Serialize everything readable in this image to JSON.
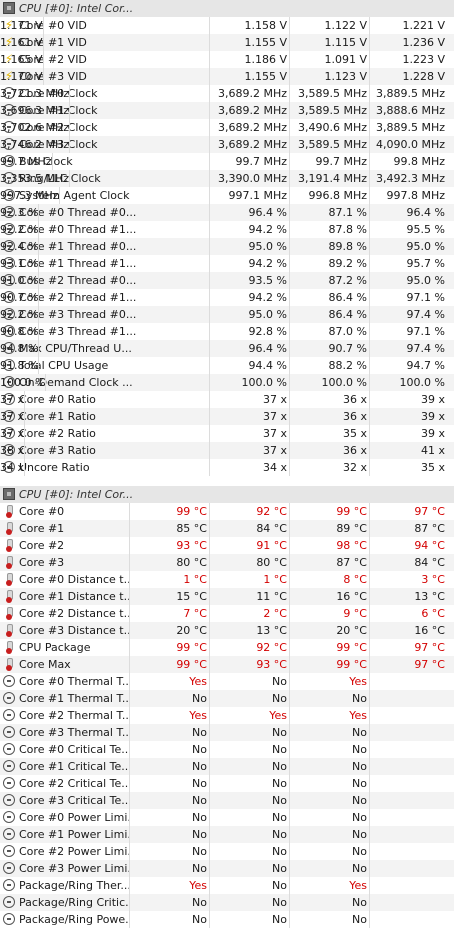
{
  "sections": [
    {
      "header": "CPU [#0]: Intel Cor...",
      "rows": [
        {
          "icon": "volt",
          "label": "Core #0 VID",
          "v": [
            "1.158 V",
            "1.122 V",
            "1.221 V",
            "1.171 V"
          ]
        },
        {
          "icon": "volt",
          "label": "Core #1 VID",
          "v": [
            "1.155 V",
            "1.115 V",
            "1.236 V",
            "1.161 V"
          ]
        },
        {
          "icon": "volt",
          "label": "Core #2 VID",
          "v": [
            "1.186 V",
            "1.091 V",
            "1.223 V",
            "1.165 V"
          ]
        },
        {
          "icon": "volt",
          "label": "Core #3 VID",
          "v": [
            "1.155 V",
            "1.123 V",
            "1.228 V",
            "1.170 V"
          ]
        },
        {
          "icon": "clock",
          "label": "Core #0 Clock",
          "v": [
            "3,689.2 MHz",
            "3,589.5 MHz",
            "3,889.5 MHz",
            "3,721.3 MHz"
          ]
        },
        {
          "icon": "clock",
          "label": "Core #1 Clock",
          "v": [
            "3,689.2 MHz",
            "3,589.5 MHz",
            "3,888.6 MHz",
            "3,696.3 MHz"
          ]
        },
        {
          "icon": "clock",
          "label": "Core #2 Clock",
          "v": [
            "3,689.2 MHz",
            "3,490.6 MHz",
            "3,889.5 MHz",
            "3,702.6 MHz"
          ]
        },
        {
          "icon": "clock",
          "label": "Core #3 Clock",
          "v": [
            "3,689.2 MHz",
            "3,589.5 MHz",
            "4,090.0 MHz",
            "3,746.2 MHz"
          ]
        },
        {
          "icon": "clock",
          "label": "Bus Clock",
          "v": [
            "99.7 MHz",
            "99.7 MHz",
            "99.8 MHz",
            "99.7 MHz"
          ]
        },
        {
          "icon": "clock",
          "label": "Ring/LLC Clock",
          "v": [
            "3,390.0 MHz",
            "3,191.4 MHz",
            "3,492.3 MHz",
            "3,353.5 MHz"
          ]
        },
        {
          "icon": "clock",
          "label": "System Agent Clock",
          "v": [
            "997.1 MHz",
            "996.8 MHz",
            "997.8 MHz",
            "997.3 MHz"
          ]
        },
        {
          "icon": "clock",
          "label": "Core #0 Thread #0...",
          "v": [
            "96.4 %",
            "87.1 %",
            "96.4 %",
            "92.3 %"
          ]
        },
        {
          "icon": "clock",
          "label": "Core #0 Thread #1...",
          "v": [
            "94.2 %",
            "87.8 %",
            "95.5 %",
            "92.2 %"
          ]
        },
        {
          "icon": "clock",
          "label": "Core #1 Thread #0...",
          "v": [
            "95.0 %",
            "89.8 %",
            "95.0 %",
            "92.4 %"
          ]
        },
        {
          "icon": "clock",
          "label": "Core #1 Thread #1...",
          "v": [
            "94.2 %",
            "89.2 %",
            "95.7 %",
            "93.1 %"
          ]
        },
        {
          "icon": "clock",
          "label": "Core #2 Thread #0...",
          "v": [
            "93.5 %",
            "87.2 %",
            "95.0 %",
            "91.0 %"
          ]
        },
        {
          "icon": "clock",
          "label": "Core #2 Thread #1...",
          "v": [
            "94.2 %",
            "86.4 %",
            "97.1 %",
            "90.7 %"
          ]
        },
        {
          "icon": "clock",
          "label": "Core #3 Thread #0...",
          "v": [
            "95.0 %",
            "86.4 %",
            "97.4 %",
            "92.2 %"
          ]
        },
        {
          "icon": "clock",
          "label": "Core #3 Thread #1...",
          "v": [
            "92.8 %",
            "87.0 %",
            "97.1 %",
            "90.8 %"
          ]
        },
        {
          "icon": "clock",
          "label": "Max CPU/Thread U...",
          "v": [
            "96.4 %",
            "90.7 %",
            "97.4 %",
            "94.8 %"
          ]
        },
        {
          "icon": "clock",
          "label": "Total CPU Usage",
          "v": [
            "94.4 %",
            "88.2 %",
            "94.7 %",
            "91.8 %"
          ]
        },
        {
          "icon": "clock",
          "label": "On-Demand Clock ...",
          "v": [
            "100.0 %",
            "100.0 %",
            "100.0 %",
            "100.0 %"
          ]
        },
        {
          "icon": "clock",
          "label": "Core #0 Ratio",
          "v": [
            "37 x",
            "36 x",
            "39 x",
            "37 x"
          ]
        },
        {
          "icon": "clock",
          "label": "Core #1 Ratio",
          "v": [
            "37 x",
            "36 x",
            "39 x",
            "37 x"
          ]
        },
        {
          "icon": "clock",
          "label": "Core #2 Ratio",
          "v": [
            "37 x",
            "35 x",
            "39 x",
            "37 x"
          ]
        },
        {
          "icon": "clock",
          "label": "Core #3 Ratio",
          "v": [
            "37 x",
            "36 x",
            "41 x",
            "38 x"
          ]
        },
        {
          "icon": "clock",
          "label": "Uncore Ratio",
          "v": [
            "34 x",
            "32 x",
            "35 x",
            "34 x"
          ]
        }
      ]
    },
    {
      "header": "CPU [#0]: Intel Cor...",
      "rows": [
        {
          "icon": "therm",
          "label": "Core #0",
          "v": [
            "99 °C",
            "92 °C",
            "99 °C",
            "97 °C"
          ],
          "red": [
            true,
            true,
            true,
            true
          ]
        },
        {
          "icon": "therm",
          "label": "Core #1",
          "v": [
            "85 °C",
            "84 °C",
            "89 °C",
            "87 °C"
          ],
          "red": [
            false,
            false,
            false,
            false
          ]
        },
        {
          "icon": "therm",
          "label": "Core #2",
          "v": [
            "93 °C",
            "91 °C",
            "98 °C",
            "94 °C"
          ],
          "red": [
            true,
            true,
            true,
            true
          ]
        },
        {
          "icon": "therm",
          "label": "Core #3",
          "v": [
            "80 °C",
            "80 °C",
            "87 °C",
            "84 °C"
          ],
          "red": [
            false,
            false,
            false,
            false
          ]
        },
        {
          "icon": "therm",
          "label": "Core #0 Distance t...",
          "v": [
            "1 °C",
            "1 °C",
            "8 °C",
            "3 °C"
          ],
          "red": [
            true,
            true,
            true,
            true
          ]
        },
        {
          "icon": "therm",
          "label": "Core #1 Distance t...",
          "v": [
            "15 °C",
            "11 °C",
            "16 °C",
            "13 °C"
          ],
          "red": [
            false,
            false,
            false,
            false
          ]
        },
        {
          "icon": "therm",
          "label": "Core #2 Distance t...",
          "v": [
            "7 °C",
            "2 °C",
            "9 °C",
            "6 °C"
          ],
          "red": [
            true,
            true,
            true,
            true
          ]
        },
        {
          "icon": "therm",
          "label": "Core #3 Distance t...",
          "v": [
            "20 °C",
            "13 °C",
            "20 °C",
            "16 °C"
          ],
          "red": [
            false,
            false,
            false,
            false
          ]
        },
        {
          "icon": "therm",
          "label": "CPU Package",
          "v": [
            "99 °C",
            "92 °C",
            "99 °C",
            "97 °C"
          ],
          "red": [
            true,
            true,
            true,
            true
          ]
        },
        {
          "icon": "therm",
          "label": "Core Max",
          "v": [
            "99 °C",
            "93 °C",
            "99 °C",
            "97 °C"
          ],
          "red": [
            true,
            true,
            true,
            true
          ]
        },
        {
          "icon": "clock",
          "label": "Core #0 Thermal T...",
          "v": [
            "Yes",
            "No",
            "Yes",
            ""
          ],
          "red": [
            true,
            false,
            true,
            false
          ]
        },
        {
          "icon": "clock",
          "label": "Core #1 Thermal T...",
          "v": [
            "No",
            "No",
            "No",
            ""
          ],
          "red": [
            false,
            false,
            false,
            false
          ]
        },
        {
          "icon": "clock",
          "label": "Core #2 Thermal T...",
          "v": [
            "Yes",
            "Yes",
            "Yes",
            ""
          ],
          "red": [
            true,
            true,
            true,
            false
          ]
        },
        {
          "icon": "clock",
          "label": "Core #3 Thermal T...",
          "v": [
            "No",
            "No",
            "No",
            ""
          ],
          "red": [
            false,
            false,
            false,
            false
          ]
        },
        {
          "icon": "clock",
          "label": "Core #0 Critical Te...",
          "v": [
            "No",
            "No",
            "No",
            ""
          ],
          "red": [
            false,
            false,
            false,
            false
          ]
        },
        {
          "icon": "clock",
          "label": "Core #1 Critical Te...",
          "v": [
            "No",
            "No",
            "No",
            ""
          ],
          "red": [
            false,
            false,
            false,
            false
          ]
        },
        {
          "icon": "clock",
          "label": "Core #2 Critical Te...",
          "v": [
            "No",
            "No",
            "No",
            ""
          ],
          "red": [
            false,
            false,
            false,
            false
          ]
        },
        {
          "icon": "clock",
          "label": "Core #3 Critical Te...",
          "v": [
            "No",
            "No",
            "No",
            ""
          ],
          "red": [
            false,
            false,
            false,
            false
          ]
        },
        {
          "icon": "clock",
          "label": "Core #0 Power Limi...",
          "v": [
            "No",
            "No",
            "No",
            ""
          ],
          "red": [
            false,
            false,
            false,
            false
          ]
        },
        {
          "icon": "clock",
          "label": "Core #1 Power Limi...",
          "v": [
            "No",
            "No",
            "No",
            ""
          ],
          "red": [
            false,
            false,
            false,
            false
          ]
        },
        {
          "icon": "clock",
          "label": "Core #2 Power Limi...",
          "v": [
            "No",
            "No",
            "No",
            ""
          ],
          "red": [
            false,
            false,
            false,
            false
          ]
        },
        {
          "icon": "clock",
          "label": "Core #3 Power Limi...",
          "v": [
            "No",
            "No",
            "No",
            ""
          ],
          "red": [
            false,
            false,
            false,
            false
          ]
        },
        {
          "icon": "clock",
          "label": "Package/Ring Ther...",
          "v": [
            "Yes",
            "No",
            "Yes",
            ""
          ],
          "red": [
            true,
            false,
            true,
            false
          ]
        },
        {
          "icon": "clock",
          "label": "Package/Ring Critic...",
          "v": [
            "No",
            "No",
            "No",
            ""
          ],
          "red": [
            false,
            false,
            false,
            false
          ]
        },
        {
          "icon": "clock",
          "label": "Package/Ring Powe...",
          "v": [
            "No",
            "No",
            "No",
            ""
          ],
          "red": [
            false,
            false,
            false,
            false
          ]
        }
      ]
    }
  ],
  "colors": {
    "alert": "#d40000",
    "header_bg": "#e6e6e6",
    "alt_row": "#f3f3f3"
  }
}
